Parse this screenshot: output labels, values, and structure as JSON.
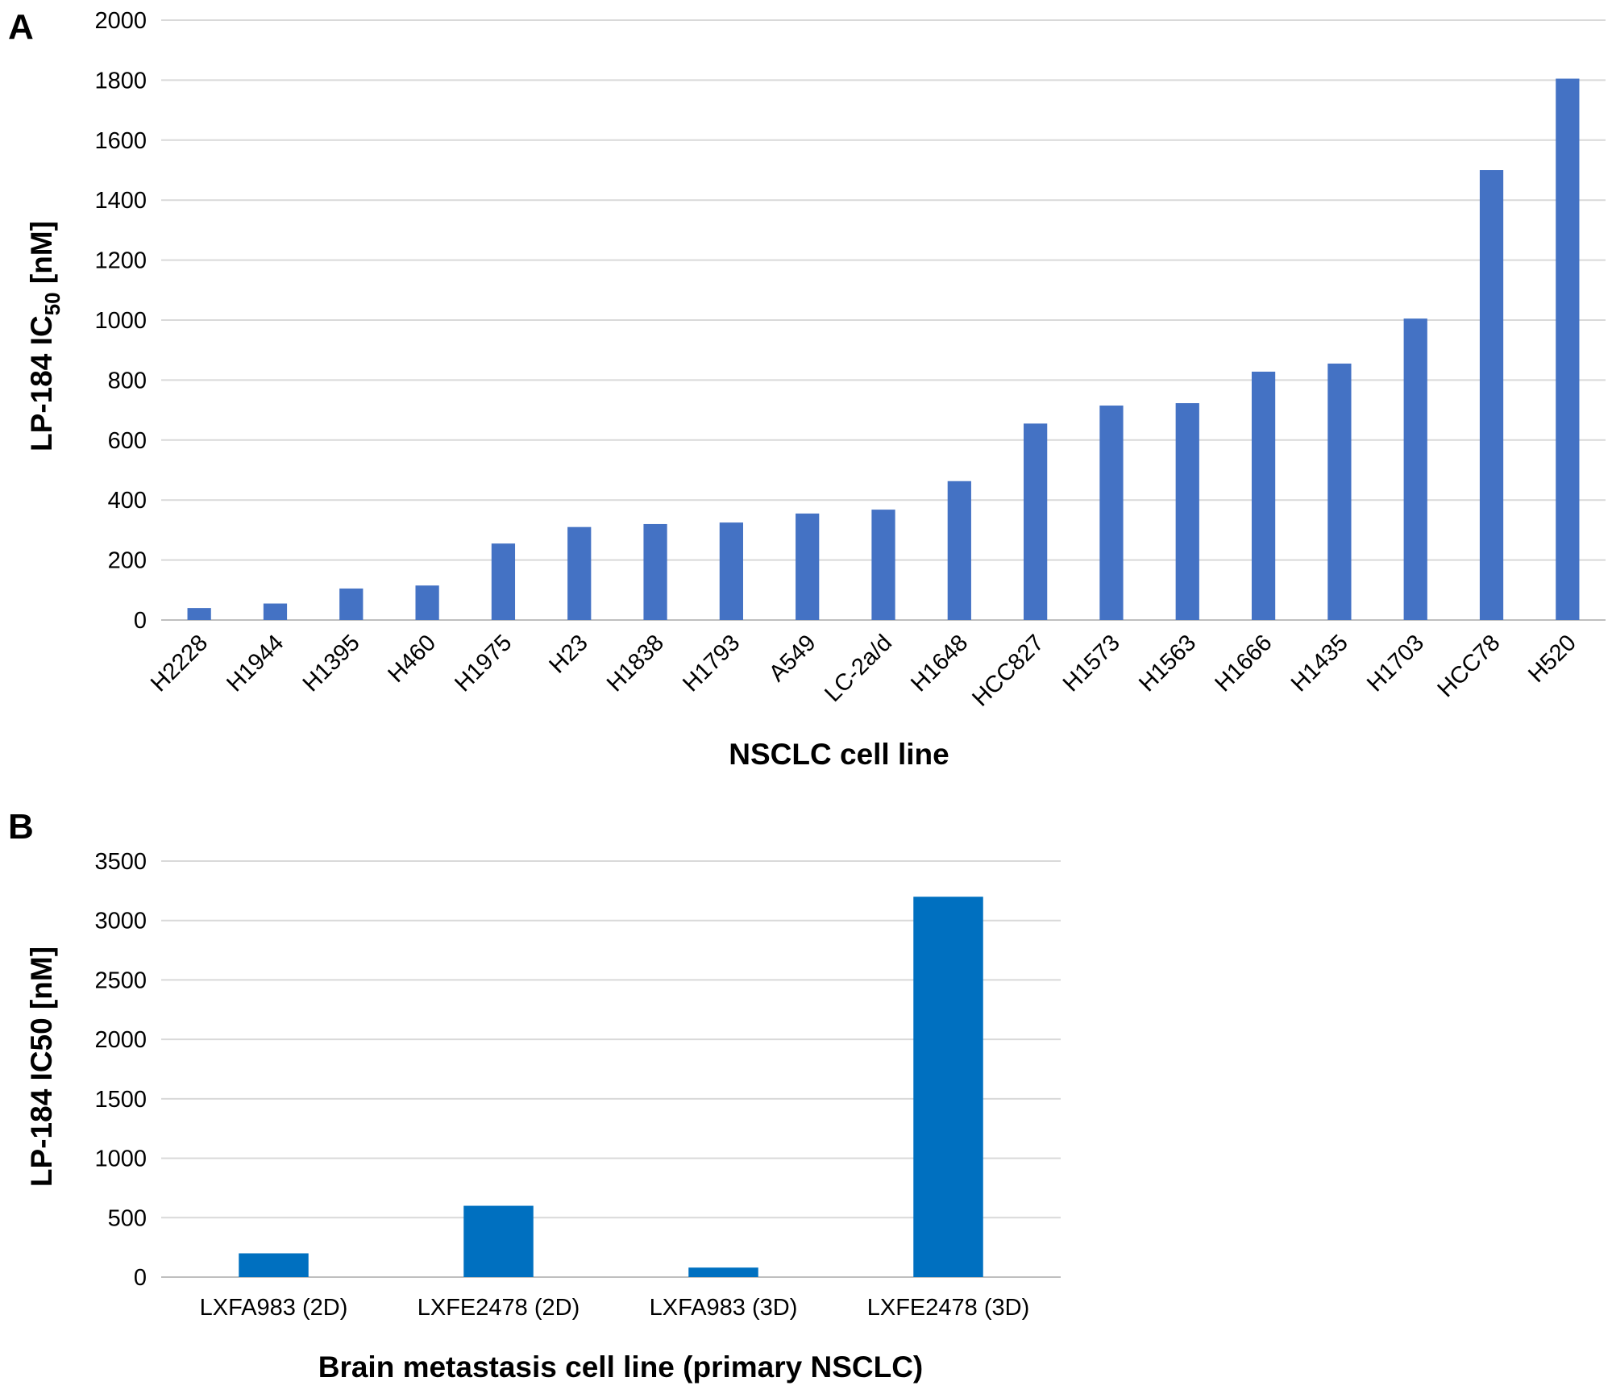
{
  "chart_data": [
    {
      "panel": "A",
      "type": "bar",
      "categories": [
        "H2228",
        "H1944",
        "H1395",
        "H460",
        "H1975",
        "H23",
        "H1838",
        "H1793",
        "A549",
        "LC-2a/d",
        "H1648",
        "HCC827",
        "H1573",
        "H1563",
        "H1666",
        "H1435",
        "H1703",
        "HCC78",
        "H520"
      ],
      "values": [
        40,
        55,
        105,
        115,
        255,
        310,
        320,
        325,
        355,
        368,
        463,
        655,
        715,
        723,
        828,
        855,
        1005,
        1500,
        1805
      ],
      "title": "",
      "xlabel": "NSCLC cell line",
      "ylabel_main": "LP-184 IC",
      "ylabel_sub": "50",
      "ylabel_unit": " [nM]",
      "ylim": [
        0,
        2000
      ],
      "yticks": [
        0,
        200,
        400,
        600,
        800,
        1000,
        1200,
        1400,
        1600,
        1800,
        2000
      ],
      "bar_color": "#4472C4",
      "grid": true,
      "legend": "none"
    },
    {
      "panel": "B",
      "type": "bar",
      "categories": [
        "LXFA983 (2D)",
        "LXFE2478 (2D)",
        "LXFA983 (3D)",
        "LXFE2478 (3D)"
      ],
      "values": [
        200,
        600,
        80,
        3200
      ],
      "title": "",
      "xlabel": "Brain metastasis cell line (primary NSCLC)",
      "ylabel": "LP-184 IC50 [nM]",
      "ylim": [
        0,
        3500
      ],
      "yticks": [
        0,
        500,
        1000,
        1500,
        2000,
        2500,
        3000,
        3500
      ],
      "bar_color": "#0070C0",
      "grid": true,
      "legend": "none"
    }
  ]
}
